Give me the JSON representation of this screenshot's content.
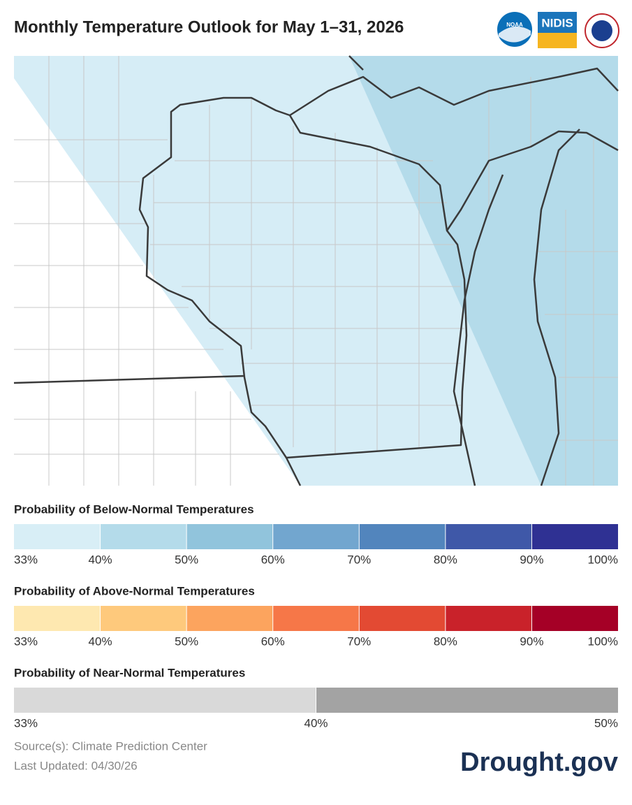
{
  "header": {
    "title": "Monthly Temperature Outlook for May 1–31, 2026",
    "logos": [
      "NOAA",
      "NIDIS"
    ]
  },
  "legends": [
    {
      "title": "Probability of Below-Normal Temperatures",
      "colors": [
        "#d8eef6",
        "#b4dbea",
        "#91c4dc",
        "#72a6cf",
        "#5285bd",
        "#3f58a8",
        "#2f3193"
      ],
      "labels": [
        "33%",
        "40%",
        "50%",
        "60%",
        "70%",
        "80%",
        "90%",
        "100%"
      ]
    },
    {
      "title": "Probability of Above-Normal Temperatures",
      "colors": [
        "#fee8b0",
        "#fec97c",
        "#fca45e",
        "#f67748",
        "#e34a33",
        "#c9222a",
        "#a50026"
      ],
      "labels": [
        "33%",
        "40%",
        "50%",
        "60%",
        "70%",
        "80%",
        "90%",
        "100%"
      ]
    },
    {
      "title": "Probability of Near-Normal Temperatures",
      "colors": [
        "#d9d9d9",
        "#a3a3a3"
      ],
      "labels": [
        "33%",
        "40%",
        "50%"
      ]
    }
  ],
  "footer": {
    "source": "Source(s): Climate Prediction Center",
    "updated": "Last Updated: 04/30/26",
    "brand": "Drought.gov"
  }
}
